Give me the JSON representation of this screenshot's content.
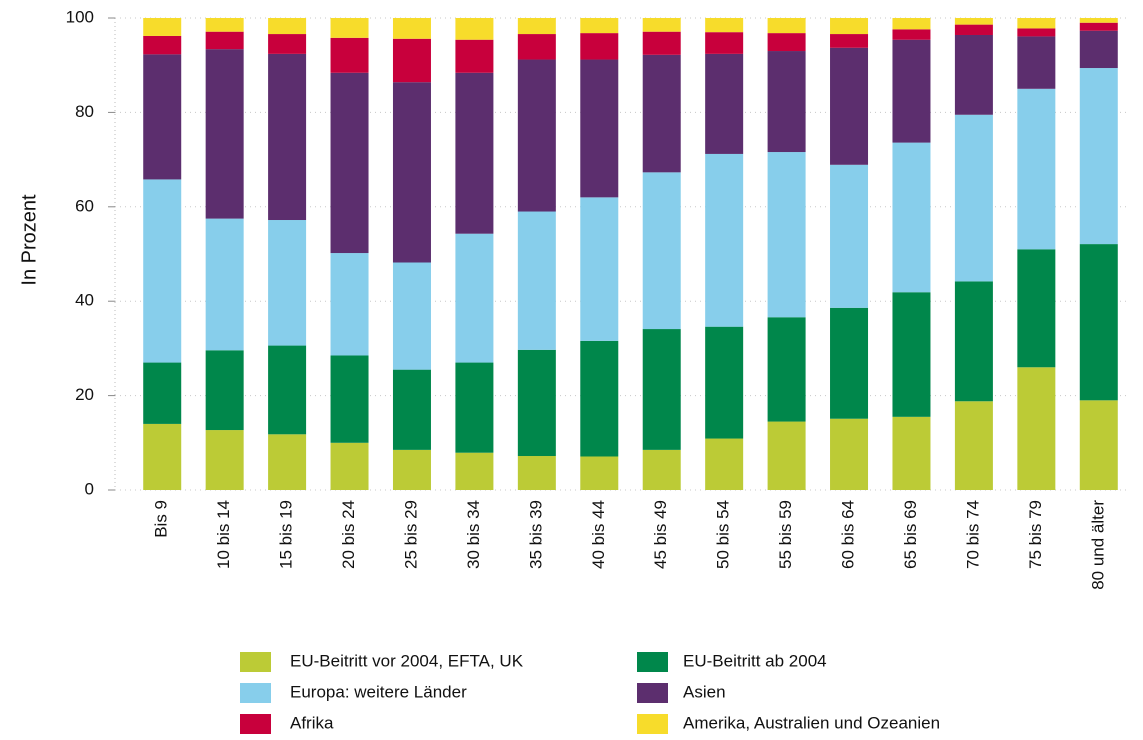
{
  "chart_data": {
    "type": "stacked_bar",
    "y_label": "In Prozent",
    "categories": [
      "Bis 9",
      "10 bis 14",
      "15 bis 19",
      "20 bis 24",
      "25 bis 29",
      "30 bis 34",
      "35 bis 39",
      "40 bis 44",
      "45 bis 49",
      "50 bis 54",
      "55 bis 59",
      "60 bis 64",
      "65 bis 69",
      "70 bis 74",
      "75 bis 79",
      "80 und älter"
    ],
    "series": [
      {
        "name": "EU-Beitritt vor 2004, EFTA, UK",
        "color": "#bccb36",
        "values": [
          14,
          12.7,
          11.8,
          10,
          8.5,
          7.9,
          7.2,
          7.1,
          8.5,
          10.9,
          14.5,
          15.1,
          15.5,
          18.8,
          26,
          19
        ]
      },
      {
        "name": "EU-Beitritt ab 2004",
        "color": "#00874b",
        "values": [
          13,
          16.9,
          18.8,
          18.5,
          17,
          19.1,
          22.5,
          24.5,
          25.6,
          23.7,
          22.1,
          23.5,
          26.4,
          25.4,
          25,
          33.1
        ]
      },
      {
        "name": "Europa: weitere Länder",
        "color": "#87ceeb",
        "values": [
          38.8,
          27.9,
          26.6,
          21.7,
          22.7,
          27.3,
          29.3,
          30.4,
          33.2,
          36.6,
          35,
          30.3,
          31.7,
          35.3,
          34,
          37.3
        ]
      },
      {
        "name": "Asien",
        "color": "#5c2e6e",
        "values": [
          26.5,
          35.9,
          35.2,
          38.2,
          38.2,
          34.1,
          32.2,
          29.2,
          24.9,
          21.2,
          21.4,
          24.8,
          21.8,
          16.9,
          11.1,
          7.9
        ]
      },
      {
        "name": "Afrika",
        "color": "#c8003c",
        "values": [
          3.9,
          3.7,
          4.2,
          7.4,
          9.2,
          7,
          5.4,
          5.6,
          4.9,
          4.6,
          3.8,
          2.9,
          2.2,
          2.2,
          1.7,
          1.7
        ]
      },
      {
        "name": "Amerika, Australien und Ozeanien",
        "color": "#f7dc2b",
        "values": [
          3.8,
          2.9,
          3.4,
          4.2,
          4.4,
          4.6,
          3.4,
          3.2,
          2.9,
          3,
          3.2,
          3.4,
          2.4,
          1.4,
          2.2,
          1
        ]
      }
    ],
    "ylim": [
      0,
      100
    ],
    "yticks": [
      0,
      20,
      40,
      60,
      80,
      100
    ],
    "grid": true
  }
}
